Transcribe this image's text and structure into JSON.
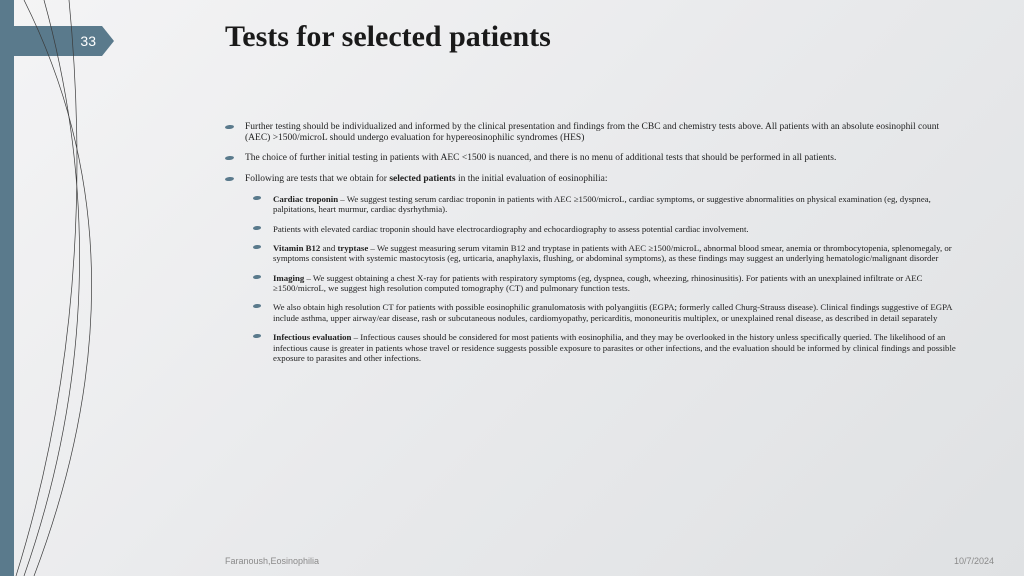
{
  "slide_number": "33",
  "title": "Tests for selected patients",
  "footer_author": "Faranoush,Eosinophilia",
  "footer_date": "10/7/2024",
  "colors": {
    "accent": "#5a7a8c",
    "bg_grad_a": "#f4f4f5",
    "bg_grad_b": "#dfe1e3",
    "title": "#1a1a1a",
    "body": "#222222",
    "footer": "#8a8a8a"
  },
  "bullets": [
    {
      "level": 1,
      "html": "Further testing should be individualized and informed by the clinical presentation and findings from the CBC and chemistry tests above. All patients with an absolute eosinophil count (AEC) >1500/microL should undergo evaluation for hypereosinophilic syndromes (HES)"
    },
    {
      "level": 1,
      "html": "The choice of further initial testing in patients with AEC <1500 is nuanced, and there is no menu of additional tests that should be performed in all patients."
    },
    {
      "level": 1,
      "html": "Following are tests that we obtain for <b>selected patients</b> in the initial evaluation of eosinophilia:"
    },
    {
      "level": 2,
      "html": "<b>Cardiac troponin</b> – We suggest testing serum cardiac troponin in patients with AEC ≥1500/microL, cardiac symptoms, or suggestive abnormalities on physical examination (eg, dyspnea, palpitations, heart murmur, cardiac dysrhythmia)."
    },
    {
      "level": 2,
      "html": "Patients with elevated cardiac troponin should have electrocardiography and echocardiography to assess potential cardiac involvement."
    },
    {
      "level": 2,
      "html": "<b>Vitamin B12</b> and <b>tryptase</b> – We suggest measuring serum vitamin B12 and tryptase in patients with AEC ≥1500/microL, abnormal blood smear, anemia or thrombocytopenia, splenomegaly, or symptoms consistent with systemic mastocytosis (eg, urticaria, anaphylaxis, flushing, or abdominal symptoms), as these findings may suggest an underlying hematologic/malignant disorder"
    },
    {
      "level": 2,
      "html": "<b>Imaging</b> – We suggest obtaining a chest X-ray for patients with respiratory symptoms (eg, dyspnea, cough, wheezing, rhinosinusitis). For patients with an unexplained infiltrate or AEC ≥1500/microL, we suggest high resolution computed tomography (CT) and pulmonary function tests."
    },
    {
      "level": 2,
      "html": "We also obtain high resolution CT for patients with possible eosinophilic granulomatosis with polyangiitis (EGPA; formerly called Churg-Strauss disease). Clinical findings suggestive of EGPA include asthma, upper airway/ear disease, rash or subcutaneous nodules, cardiomyopathy, pericarditis, mononeuritis multiplex, or unexplained renal disease, as described in detail separately"
    },
    {
      "level": 2,
      "html": "<b>Infectious evaluation</b> – Infectious causes should be considered for most patients with eosinophilia, and they may be overlooked in the history unless specifically queried. The likelihood of an infectious cause is greater in patients whose travel or residence suggests possible exposure to parasites or other infections, and the evaluation should be informed by clinical findings and possible exposure to parasites and other infections."
    }
  ]
}
